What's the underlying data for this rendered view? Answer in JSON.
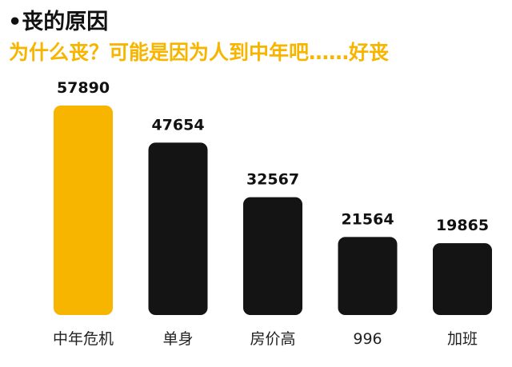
{
  "header": {
    "title": "•丧的原因",
    "subtitle": "为什么丧？可能是因为人到中年吧……好丧"
  },
  "colors": {
    "highlight": "#f7b500",
    "bar": "#141414",
    "text": "#111111"
  },
  "chart_data": {
    "type": "bar",
    "categories": [
      "中年危机",
      "单身",
      "房价高",
      "996",
      "加班"
    ],
    "values": [
      57890,
      47654,
      32567,
      21564,
      19865
    ],
    "value_labels": [
      "57890",
      "47654",
      "32567",
      "21564",
      "19865"
    ],
    "highlight_index": 0,
    "xlabel": "",
    "ylabel": "",
    "ylim": [
      0,
      60000
    ],
    "grid": false,
    "legend": "none"
  }
}
